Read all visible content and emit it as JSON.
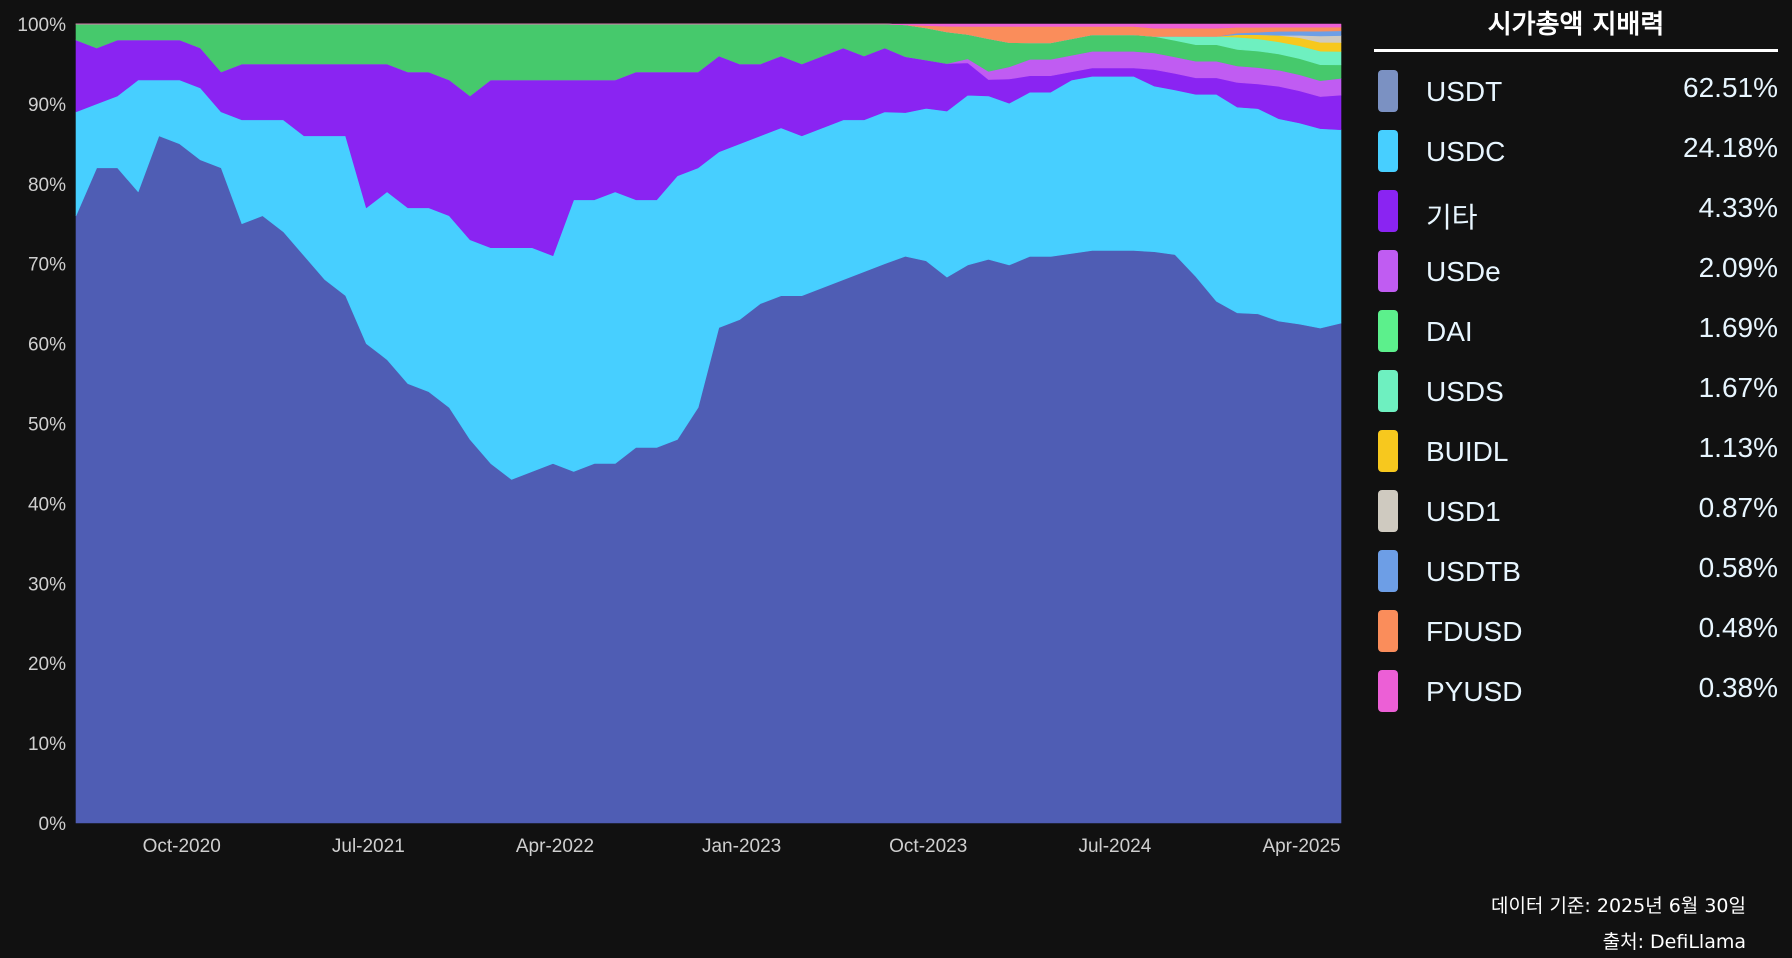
{
  "chart_data": {
    "type": "area",
    "stacked": true,
    "normalized": true,
    "title": "시가총액 지배력",
    "xlabel": "",
    "ylabel": "",
    "ylim": [
      0,
      100
    ],
    "y_ticks": [
      "0%",
      "10%",
      "20%",
      "30%",
      "40%",
      "50%",
      "60%",
      "70%",
      "80%",
      "90%",
      "100%"
    ],
    "x_ticks": [
      "Oct-2020",
      "Jul-2021",
      "Apr-2022",
      "Jan-2023",
      "Oct-2023",
      "Jul-2024",
      "Apr-2025"
    ],
    "x_tick_index": [
      5,
      14,
      23,
      32,
      41,
      50,
      59
    ],
    "x_dates": [
      "2020-05",
      "2020-06",
      "2020-07",
      "2020-08",
      "2020-09",
      "2020-10",
      "2020-11",
      "2020-12",
      "2021-01",
      "2021-02",
      "2021-03",
      "2021-04",
      "2021-05",
      "2021-06",
      "2021-07",
      "2021-08",
      "2021-09",
      "2021-10",
      "2021-11",
      "2021-12",
      "2022-01",
      "2022-02",
      "2022-03",
      "2022-04",
      "2022-05",
      "2022-06",
      "2022-07",
      "2022-08",
      "2022-09",
      "2022-10",
      "2022-11",
      "2022-12",
      "2023-01",
      "2023-02",
      "2023-03",
      "2023-04",
      "2023-05",
      "2023-06",
      "2023-07",
      "2023-08",
      "2023-09",
      "2023-10",
      "2023-11",
      "2023-12",
      "2024-01",
      "2024-02",
      "2024-03",
      "2024-04",
      "2024-05",
      "2024-06",
      "2024-07",
      "2024-08",
      "2024-09",
      "2024-10",
      "2024-11",
      "2024-12",
      "2025-01",
      "2025-02",
      "2025-03",
      "2025-04",
      "2025-05",
      "2025-06"
    ],
    "series": [
      {
        "name": "USDT",
        "color": "#4f5db4",
        "values": [
          76,
          82,
          82,
          79,
          86,
          85,
          83,
          82,
          75,
          76,
          74,
          71,
          68,
          66,
          60,
          58,
          55,
          54,
          52,
          48,
          45,
          43,
          44,
          45,
          44,
          45,
          45,
          47,
          47,
          48,
          52,
          62,
          63,
          65,
          66,
          66,
          67,
          68,
          69,
          70,
          71,
          70,
          69,
          69,
          69,
          69,
          69,
          69,
          69,
          69,
          69,
          69,
          69,
          69,
          66,
          63,
          62,
          62,
          62,
          62,
          62,
          62.51
        ]
      },
      {
        "name": "USDC",
        "color": "#47cfff",
        "values": [
          13,
          8,
          9,
          14,
          7,
          8,
          9,
          7,
          13,
          12,
          14,
          15,
          18,
          20,
          17,
          21,
          22,
          23,
          24,
          25,
          27,
          29,
          28,
          26,
          34,
          33,
          34,
          31,
          31,
          33,
          30,
          22,
          22,
          21,
          21,
          20,
          20,
          20,
          19,
          19,
          18,
          19,
          21,
          21,
          20,
          20,
          20,
          20,
          21,
          21,
          21,
          21,
          20,
          20,
          22,
          25,
          25,
          25,
          25,
          25,
          25,
          24.18
        ]
      },
      {
        "name": "기타",
        "color": "#8a24f2",
        "values": [
          9,
          7,
          7,
          5,
          5,
          5,
          5,
          5,
          7,
          7,
          7,
          9,
          9,
          9,
          18,
          16,
          17,
          17,
          17,
          18,
          21,
          21,
          21,
          22,
          15,
          15,
          14,
          16,
          16,
          13,
          12,
          12,
          10,
          9,
          9,
          9,
          9,
          9,
          8,
          8,
          7,
          6,
          6,
          4,
          2,
          3,
          2,
          2,
          1,
          1,
          1,
          1,
          2,
          2,
          2,
          2,
          3,
          3,
          4,
          4,
          4,
          4.33
        ]
      },
      {
        "name": "USDe",
        "color": "#c05cf2",
        "values": [
          0,
          0,
          0,
          0,
          0,
          0,
          0,
          0,
          0,
          0,
          0,
          0,
          0,
          0,
          0,
          0,
          0,
          0,
          0,
          0,
          0,
          0,
          0,
          0,
          0,
          0,
          0,
          0,
          0,
          0,
          0,
          0,
          0,
          0,
          0,
          0,
          0,
          0,
          0,
          0,
          0,
          0,
          0,
          0.5,
          1,
          1.5,
          2,
          2,
          2,
          2,
          2,
          2,
          2,
          2,
          2,
          2,
          2,
          2,
          2,
          2,
          2,
          2.09
        ]
      },
      {
        "name": "DAI",
        "color": "#46c96c",
        "values": [
          2,
          3,
          2,
          2,
          2,
          2,
          3,
          6,
          5,
          5,
          5,
          5,
          5,
          5,
          5,
          5,
          6,
          6,
          7,
          9,
          7,
          7,
          7,
          7,
          7,
          7,
          7,
          6,
          6,
          6,
          6,
          4,
          5,
          5,
          4,
          5,
          4,
          3,
          4,
          3,
          4,
          4,
          4,
          3,
          4,
          3,
          2,
          2,
          2,
          2,
          2,
          2,
          2,
          2,
          2,
          2,
          2,
          2,
          2,
          2,
          2,
          1.69
        ]
      },
      {
        "name": "USDS",
        "color": "#6ef0c0",
        "values": [
          0,
          0,
          0,
          0,
          0,
          0,
          0,
          0,
          0,
          0,
          0,
          0,
          0,
          0,
          0,
          0,
          0,
          0,
          0,
          0,
          0,
          0,
          0,
          0,
          0,
          0,
          0,
          0,
          0,
          0,
          0,
          0,
          0,
          0,
          0,
          0,
          0,
          0,
          0,
          0,
          0,
          0,
          0,
          0,
          0,
          0,
          0,
          0,
          0,
          0,
          0,
          0,
          0,
          0.5,
          1,
          1,
          1.5,
          1.5,
          1.5,
          1.6,
          1.7,
          1.67
        ]
      },
      {
        "name": "BUIDL",
        "color": "#f7c81e",
        "values": [
          0,
          0,
          0,
          0,
          0,
          0,
          0,
          0,
          0,
          0,
          0,
          0,
          0,
          0,
          0,
          0,
          0,
          0,
          0,
          0,
          0,
          0,
          0,
          0,
          0,
          0,
          0,
          0,
          0,
          0,
          0,
          0,
          0,
          0,
          0,
          0,
          0,
          0,
          0,
          0,
          0,
          0,
          0,
          0,
          0,
          0,
          0,
          0,
          0,
          0,
          0,
          0,
          0,
          0,
          0,
          0,
          0.3,
          0.5,
          0.8,
          1,
          1.1,
          1.13
        ]
      },
      {
        "name": "USD1",
        "color": "#cfcac0",
        "values": [
          0,
          0,
          0,
          0,
          0,
          0,
          0,
          0,
          0,
          0,
          0,
          0,
          0,
          0,
          0,
          0,
          0,
          0,
          0,
          0,
          0,
          0,
          0,
          0,
          0,
          0,
          0,
          0,
          0,
          0,
          0,
          0,
          0,
          0,
          0,
          0,
          0,
          0,
          0,
          0,
          0,
          0,
          0,
          0,
          0,
          0,
          0,
          0,
          0,
          0,
          0,
          0,
          0,
          0,
          0,
          0,
          0,
          0,
          0,
          0.3,
          0.8,
          0.87
        ]
      },
      {
        "name": "USDTB",
        "color": "#6d9ee6",
        "values": [
          0,
          0,
          0,
          0,
          0,
          0,
          0,
          0,
          0,
          0,
          0,
          0,
          0,
          0,
          0,
          0,
          0,
          0,
          0,
          0,
          0,
          0,
          0,
          0,
          0,
          0,
          0,
          0,
          0,
          0,
          0,
          0,
          0,
          0,
          0,
          0,
          0,
          0,
          0,
          0,
          0,
          0,
          0,
          0,
          0,
          0,
          0,
          0,
          0,
          0,
          0,
          0,
          0,
          0,
          0,
          0,
          0.2,
          0.3,
          0.5,
          0.5,
          0.6,
          0.58
        ]
      },
      {
        "name": "FDUSD",
        "color": "#fa8d5b",
        "values": [
          0,
          0,
          0,
          0,
          0,
          0,
          0,
          0,
          0,
          0,
          0,
          0,
          0,
          0,
          0,
          0,
          0,
          0,
          0,
          0,
          0,
          0,
          0,
          0,
          0,
          0,
          0,
          0,
          0,
          0,
          0,
          0,
          0,
          0,
          0,
          0,
          0,
          0,
          0,
          0,
          0,
          0.3,
          0.7,
          1,
          1.5,
          2,
          2,
          2,
          1.5,
          1,
          1,
          1,
          1,
          1,
          1,
          1,
          0.7,
          0.6,
          0.5,
          0.5,
          0.5,
          0.48
        ]
      },
      {
        "name": "PYUSD",
        "color": "#ec5fd6",
        "values": [
          0,
          0,
          0,
          0,
          0,
          0,
          0,
          0,
          0,
          0,
          0,
          0,
          0,
          0,
          0,
          0,
          0,
          0,
          0,
          0,
          0,
          0,
          0,
          0,
          0,
          0,
          0,
          0,
          0,
          0,
          0,
          0,
          0,
          0,
          0,
          0,
          0,
          0,
          0,
          0,
          0.1,
          0.2,
          0.3,
          0.3,
          0.3,
          0.3,
          0.3,
          0.3,
          0.3,
          0.3,
          0.3,
          0.3,
          0.5,
          0.5,
          0.5,
          0.5,
          0.4,
          0.4,
          0.4,
          0.4,
          0.4,
          0.38
        ]
      }
    ],
    "grid": false,
    "legend_position": "right"
  },
  "legend": {
    "title": "시가총액 지배력",
    "items": [
      {
        "name": "USDT",
        "value": "62.51%",
        "color": "#7b91c2"
      },
      {
        "name": "USDC",
        "value": "24.18%",
        "color": "#47cfff"
      },
      {
        "name": "기타",
        "value": "4.33%",
        "color": "#8a24f2"
      },
      {
        "name": "USDe",
        "value": "2.09%",
        "color": "#c05cf2"
      },
      {
        "name": "DAI",
        "value": "1.69%",
        "color": "#5cf08c"
      },
      {
        "name": "USDS",
        "value": "1.67%",
        "color": "#6ef0c0"
      },
      {
        "name": "BUIDL",
        "value": "1.13%",
        "color": "#f7c81e"
      },
      {
        "name": "USD1",
        "value": "0.87%",
        "color": "#cfcac0"
      },
      {
        "name": "USDTB",
        "value": "0.58%",
        "color": "#6d9ee6"
      },
      {
        "name": "FDUSD",
        "value": "0.48%",
        "color": "#fa8d5b"
      },
      {
        "name": "PYUSD",
        "value": "0.38%",
        "color": "#ec5fd6"
      }
    ]
  },
  "footer": {
    "data_date": "데이터 기준: 2025년 6월 30일",
    "source": "출처: DefiLlama"
  }
}
